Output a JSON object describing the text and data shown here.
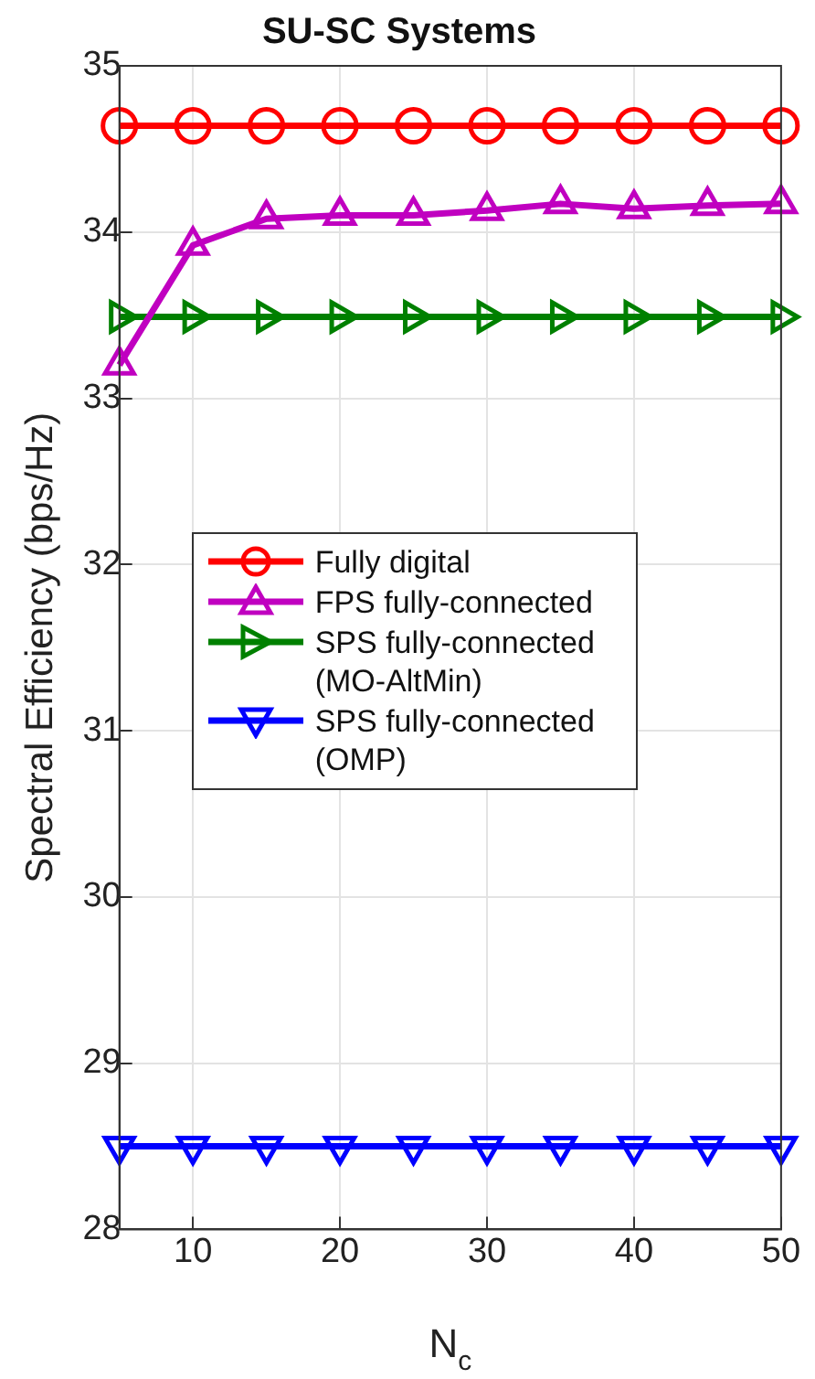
{
  "chart_data": {
    "type": "line",
    "title": "SU-SC Systems",
    "xlabel": "N$_{c}$",
    "ylabel": "Spectral Efficiency (bps/Hz)",
    "x": [
      5,
      10,
      15,
      20,
      25,
      30,
      35,
      40,
      45,
      50
    ],
    "xlim": [
      5,
      50
    ],
    "xticks": [
      10,
      20,
      30,
      40,
      50
    ],
    "ylim": [
      28,
      35
    ],
    "yticks": [
      28,
      29,
      30,
      31,
      32,
      33,
      34,
      35
    ],
    "grid": true,
    "legend": "left",
    "line_style": "solid",
    "series": [
      {
        "name": "Fully digital",
        "color": "#ff0000",
        "marker": "circle",
        "values": [
          34.64,
          34.64,
          34.64,
          34.64,
          34.64,
          34.64,
          34.64,
          34.64,
          34.64,
          34.64
        ]
      },
      {
        "name": "FPS fully-connected",
        "color": "#c000c0",
        "marker": "triangle",
        "values": [
          33.2,
          33.92,
          34.08,
          34.1,
          34.1,
          34.13,
          34.17,
          34.14,
          34.16,
          34.17
        ]
      },
      {
        "name": "SPS fully-connected (MO-AltMin)",
        "color": "#008000",
        "marker": "triangle-right",
        "values": [
          33.49,
          33.49,
          33.49,
          33.49,
          33.49,
          33.49,
          33.49,
          33.49,
          33.49,
          33.49
        ]
      },
      {
        "name": "SPS fully-connected (OMP)",
        "color": "#0000ff",
        "marker": "triangle-down",
        "values": [
          28.5,
          28.5,
          28.5,
          28.5,
          28.5,
          28.5,
          28.5,
          28.5,
          28.5,
          28.5
        ]
      }
    ]
  }
}
